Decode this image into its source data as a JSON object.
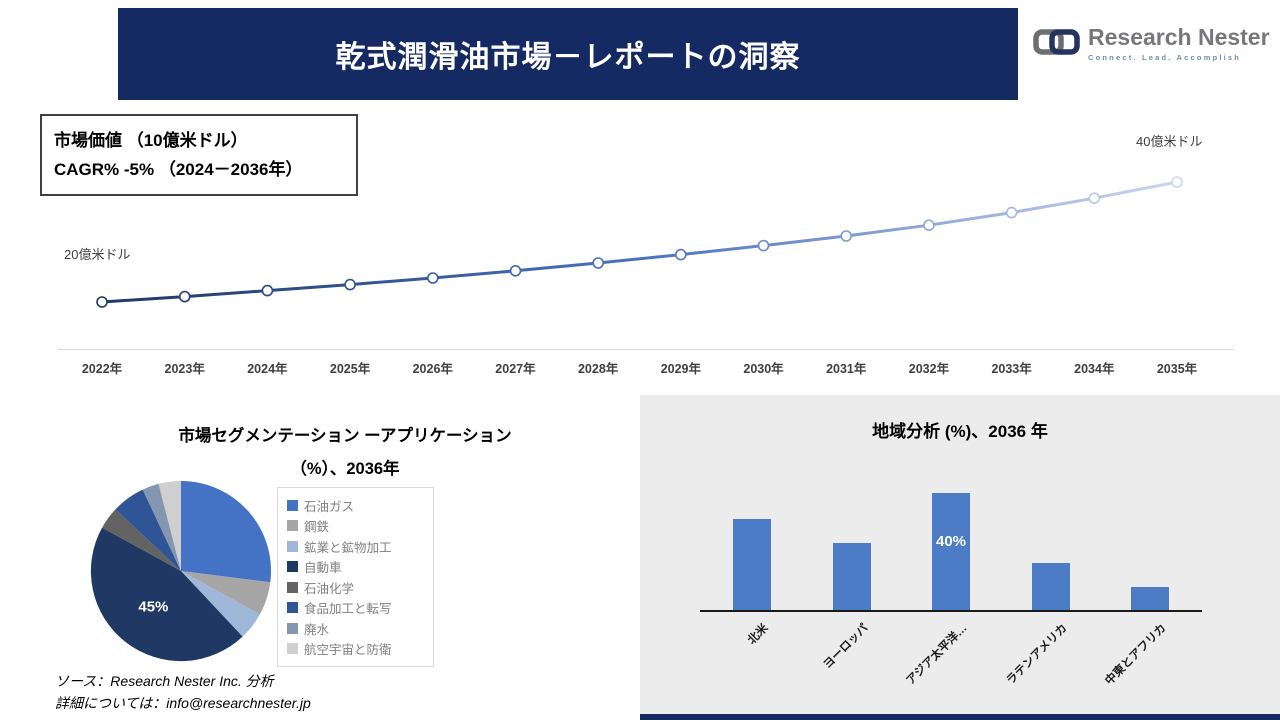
{
  "header": {
    "title": "乾式潤滑油市場－レポートの洞察",
    "bg_color": "#152a63"
  },
  "logo": {
    "name": "Research Nester",
    "tagline": "Connect. Lead. Accomplish",
    "icon": "chain-link-icon"
  },
  "info_box": {
    "line1": "市場価値 （10億米ドル）",
    "line2": "CAGR% -5% （2024－2036年）"
  },
  "chart_data": [
    {
      "name": "market-trend",
      "type": "line",
      "x": [
        "2022年",
        "2023年",
        "2024年",
        "2025年",
        "2026年",
        "2027年",
        "2028年",
        "2029年",
        "2030年",
        "2031年",
        "2032年",
        "2033年",
        "2034年",
        "2035年"
      ],
      "values": [
        20,
        20.9,
        21.9,
        22.9,
        24.0,
        25.2,
        26.5,
        27.9,
        29.4,
        31.0,
        32.8,
        34.9,
        37.3,
        40.0
      ],
      "start_label": "20億米ドル",
      "end_label": "40億米ドル",
      "ylim": [
        18,
        42
      ],
      "line_colors": [
        "#1f3864",
        "#4a72c0",
        "#ccd6ee"
      ],
      "marker": "open-circle",
      "grid": false
    },
    {
      "name": "segmentation-pie",
      "type": "pie",
      "title_line1": "市場セグメンテーション ーアプリケーション",
      "title_line2": "（%）、2036年",
      "labels": [
        "石油ガス",
        "鋼鉄",
        "鉱業と鉱物加工",
        "自動車",
        "石油化学",
        "食品加工と転写",
        "廃水",
        "航空宇宙と防衛"
      ],
      "values": [
        27,
        6,
        5,
        45,
        4,
        6,
        3,
        4
      ],
      "colors": [
        "#4472c4",
        "#a6a6a6",
        "#9fb8d9",
        "#1f3864",
        "#636363",
        "#2f5597",
        "#8496b0",
        "#cfcfcf"
      ],
      "annotation": {
        "label": "45%",
        "slice": "自動車"
      },
      "legend_position": "right"
    },
    {
      "name": "regional-bars",
      "type": "bar",
      "title": "地域分析 (%)、2036 年",
      "categories": [
        "北米",
        "ヨーロッパ",
        "アジア太平洋…",
        "ラテンアメリカ",
        "中東とアフリカ"
      ],
      "values": [
        31,
        23,
        40,
        16,
        8
      ],
      "bar_color": "#4d7cc7",
      "annotation": {
        "label": "40%",
        "category": "アジア太平洋…"
      },
      "ylim": [
        0,
        42
      ],
      "grid": false
    }
  ],
  "footer": {
    "line1": "ソース：Research Nester Inc. 分析",
    "line2": "詳細については：info@researchnester.jp"
  }
}
